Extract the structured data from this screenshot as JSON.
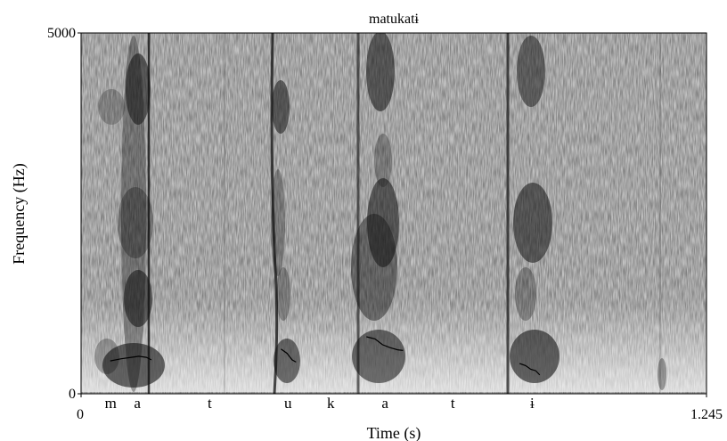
{
  "chart_data": {
    "type": "heatmap",
    "subtype": "spectrogram",
    "title": "matukatɨ",
    "xlabel": "Time (s)",
    "ylabel": "Frequency (Hz)",
    "xlim": [
      0,
      1.245
    ],
    "ylim": [
      0,
      5000
    ],
    "x_tick_labels": [
      "0",
      "1.245"
    ],
    "y_tick_labels": [
      "0",
      "5000"
    ],
    "grid": false,
    "colormap": "grayscale (darker = higher energy)",
    "segments": [
      {
        "label": "m",
        "t": 0.059
      },
      {
        "label": "a",
        "t": 0.112
      },
      {
        "label": "t",
        "t": 0.256
      },
      {
        "label": "u",
        "t": 0.412
      },
      {
        "label": "k",
        "t": 0.497
      },
      {
        "label": "a",
        "t": 0.605
      },
      {
        "label": "t",
        "t": 0.74
      },
      {
        "label": "ɨ",
        "t": 0.898
      }
    ],
    "vowel_traces": [
      {
        "segment": "a",
        "points": [
          [
            0.058,
            455
          ],
          [
            0.08,
            485
          ],
          [
            0.1,
            505
          ],
          [
            0.115,
            520
          ],
          [
            0.13,
            505
          ],
          [
            0.14,
            470
          ]
        ]
      },
      {
        "segment": "u",
        "points": [
          [
            0.398,
            620
          ],
          [
            0.41,
            560
          ],
          [
            0.42,
            470
          ],
          [
            0.428,
            440
          ]
        ]
      },
      {
        "segment": "a",
        "points": [
          [
            0.568,
            790
          ],
          [
            0.585,
            760
          ],
          [
            0.6,
            680
          ],
          [
            0.615,
            640
          ],
          [
            0.63,
            610
          ],
          [
            0.641,
            600
          ]
        ]
      },
      {
        "segment": "ɨ",
        "points": [
          [
            0.873,
            420
          ],
          [
            0.885,
            390
          ],
          [
            0.895,
            340
          ],
          [
            0.905,
            320
          ],
          [
            0.913,
            260
          ]
        ]
      }
    ]
  },
  "colors": {
    "background": "#ffffff",
    "axis": "#000000",
    "trace": "#000000"
  }
}
